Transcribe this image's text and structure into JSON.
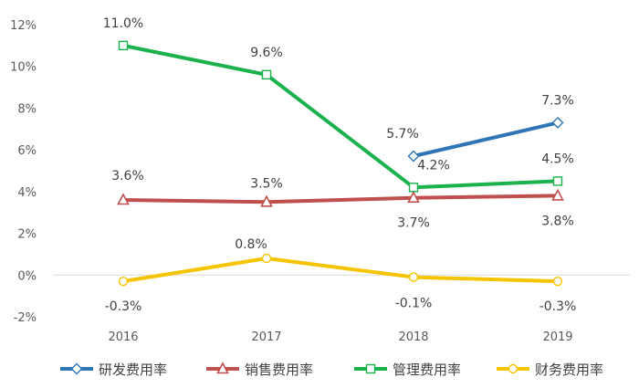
{
  "chart_data": {
    "type": "line",
    "categories": [
      "2016",
      "2017",
      "2018",
      "2019"
    ],
    "ylim": [
      -2,
      12
    ],
    "yticks": [
      "-2%",
      "0%",
      "2%",
      "4%",
      "6%",
      "8%",
      "10%",
      "12%"
    ],
    "grid": false,
    "legend_position": "bottom",
    "series": [
      {
        "name": "研发费用率",
        "color": "#2E75B6",
        "marker": "diamond",
        "values": [
          null,
          null,
          5.7,
          7.3
        ],
        "labels": [
          "",
          "",
          "5.7%",
          "7.3%"
        ]
      },
      {
        "name": "销售费用率",
        "color": "#C0504D",
        "marker": "triangle",
        "values": [
          3.6,
          3.5,
          3.7,
          3.8
        ],
        "labels": [
          "3.6%",
          "3.5%",
          "3.7%",
          "3.8%"
        ]
      },
      {
        "name": "管理费用率",
        "color": "#1BB14C",
        "marker": "square",
        "values": [
          11.0,
          9.6,
          4.2,
          4.5
        ],
        "labels": [
          "11.0%",
          "9.6%",
          "4.2%",
          "4.5%"
        ]
      },
      {
        "name": "财务费用率",
        "color": "#F5C400",
        "marker": "circle",
        "values": [
          -0.3,
          0.8,
          -0.1,
          -0.3
        ],
        "labels": [
          "-0.3%",
          "0.8%",
          "-0.1%",
          "-0.3%"
        ]
      }
    ]
  }
}
